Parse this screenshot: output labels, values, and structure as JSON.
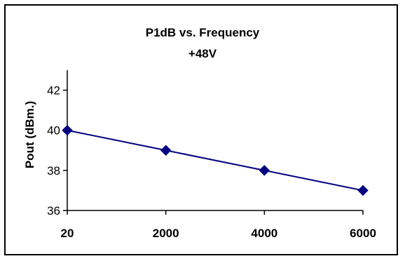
{
  "chart_data": {
    "type": "line",
    "title": "P1dB vs. Frequency",
    "subtitle": "+48V",
    "xlabel": "",
    "ylabel": "Pout (dBm.)",
    "categories": [
      "20",
      "2000",
      "4000",
      "6000"
    ],
    "series": [
      {
        "values": [
          40,
          39,
          38,
          37
        ]
      }
    ],
    "ylim": [
      36,
      43
    ],
    "yticks": [
      "36",
      "38",
      "40",
      "42"
    ],
    "grid": false,
    "legend": "none",
    "line_color": "#000080",
    "marker": "diamond"
  }
}
